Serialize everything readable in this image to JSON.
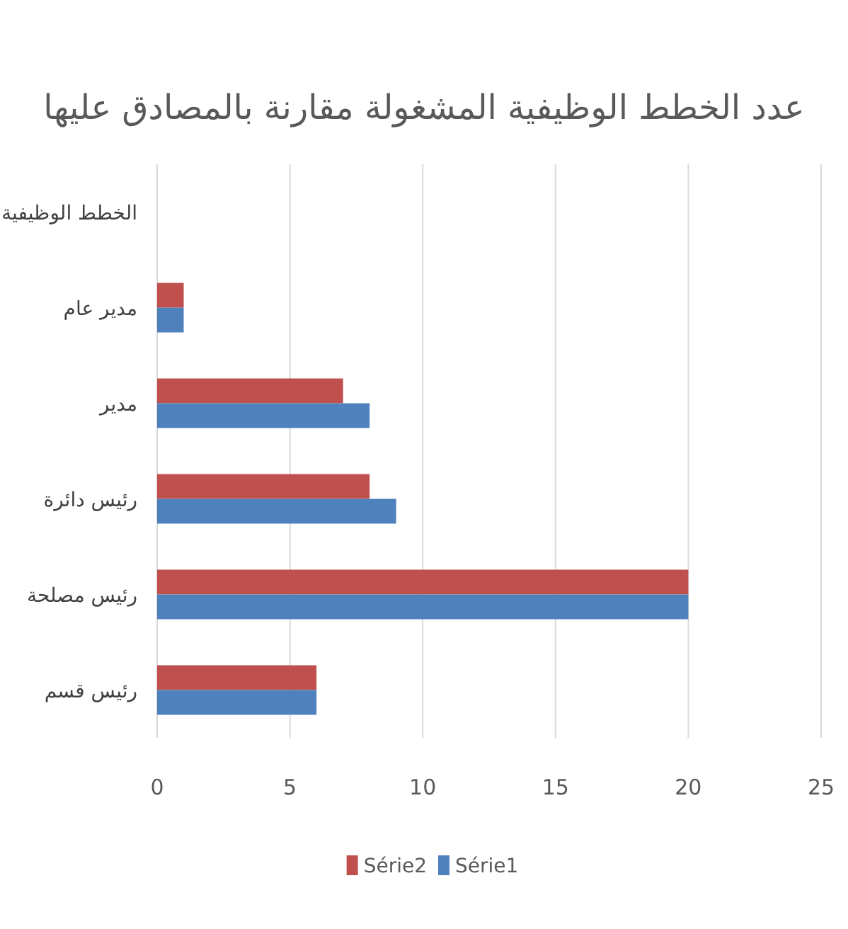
{
  "chart_data": {
    "type": "bar",
    "orientation": "horizontal",
    "title": "عدد الخطط الوظيفية المشغولة مقارنة بالمصادق عليها",
    "categories": [
      "الخطط الوظيفية",
      "مدير عام",
      "مدير",
      "رئيس دائرة",
      "رئيس مصلحة",
      "رئيس قسم"
    ],
    "series": [
      {
        "name": "Série2",
        "color": "#c0504d",
        "values": [
          null,
          1,
          7,
          8,
          20,
          6
        ]
      },
      {
        "name": "Série1",
        "color": "#4f81bd",
        "values": [
          null,
          1,
          8,
          9,
          20,
          6
        ]
      }
    ],
    "xlim": [
      0,
      25
    ],
    "xticks": [
      0,
      5,
      10,
      15,
      20,
      25
    ],
    "grid": "x",
    "legend": "bottom"
  }
}
